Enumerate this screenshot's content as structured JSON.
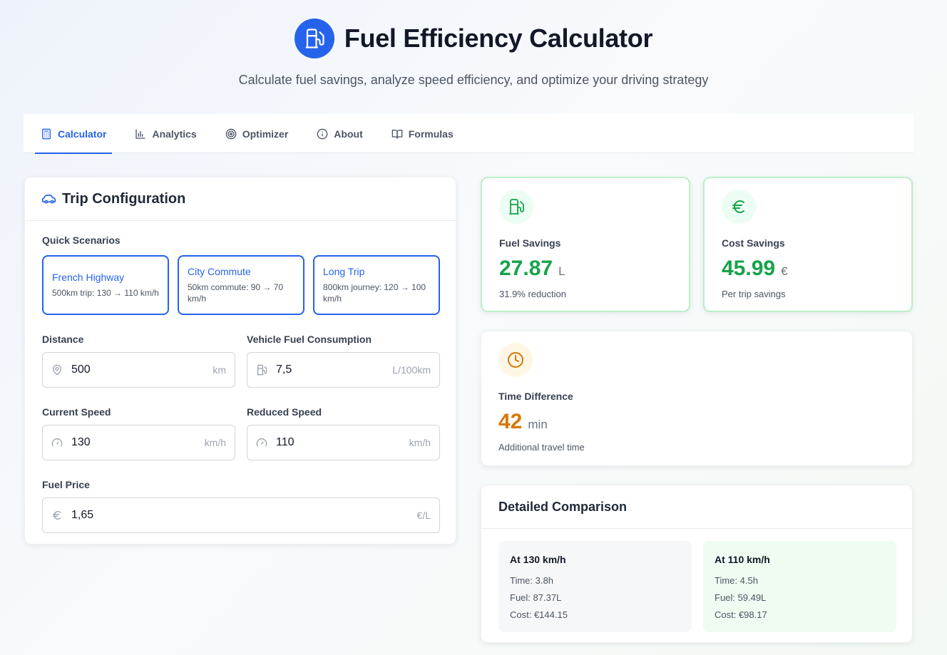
{
  "header": {
    "title": "Fuel Efficiency Calculator",
    "subtitle": "Calculate fuel savings, analyze speed efficiency, and optimize your driving strategy",
    "logo_icon": "fuel-pump-icon",
    "brand_color": "#2563eb"
  },
  "tabs": [
    {
      "label": "Calculator",
      "icon": "calculator-icon",
      "active": true
    },
    {
      "label": "Analytics",
      "icon": "bar-chart-icon",
      "active": false
    },
    {
      "label": "Optimizer",
      "icon": "target-icon",
      "active": false
    },
    {
      "label": "About",
      "icon": "info-icon",
      "active": false
    },
    {
      "label": "Formulas",
      "icon": "book-icon",
      "active": false
    }
  ],
  "config": {
    "title": "Trip Configuration",
    "quick_label": "Quick Scenarios",
    "scenarios": [
      {
        "title": "French Highway",
        "desc": "500km trip: 130 → 110 km/h"
      },
      {
        "title": "City Commute",
        "desc": "50km commute: 90 → 70 km/h"
      },
      {
        "title": "Long Trip",
        "desc": "800km journey: 120 → 100 km/h"
      }
    ],
    "fields": {
      "distance": {
        "label": "Distance",
        "value": "500",
        "unit": "km"
      },
      "consumption": {
        "label": "Vehicle Fuel Consumption",
        "value": "7,5",
        "unit": "L/100km"
      },
      "current_speed": {
        "label": "Current Speed",
        "value": "130",
        "unit": "km/h"
      },
      "reduced_speed": {
        "label": "Reduced Speed",
        "value": "110",
        "unit": "km/h"
      },
      "fuel_price": {
        "label": "Fuel Price",
        "value": "1,65",
        "unit": "€/L"
      }
    }
  },
  "stats": {
    "fuel": {
      "label": "Fuel Savings",
      "value": "27.87",
      "unit": "L",
      "note": "31.9% reduction",
      "color": "#16a34a"
    },
    "cost": {
      "label": "Cost Savings",
      "value": "45.99",
      "unit": "€",
      "note": "Per trip savings",
      "color": "#16a34a"
    },
    "time": {
      "label": "Time Difference",
      "value": "42",
      "unit": "min",
      "note": "Additional travel time",
      "color": "#d97706"
    }
  },
  "comparison": {
    "title": "Detailed Comparison",
    "current": {
      "title": "At 130 km/h",
      "time": "Time: 3.8h",
      "fuel": "Fuel: 87.37L",
      "cost": "Cost: €144.15"
    },
    "reduced": {
      "title": "At 110 km/h",
      "time": "Time: 4.5h",
      "fuel": "Fuel: 59.49L",
      "cost": "Cost: €98.17"
    }
  }
}
